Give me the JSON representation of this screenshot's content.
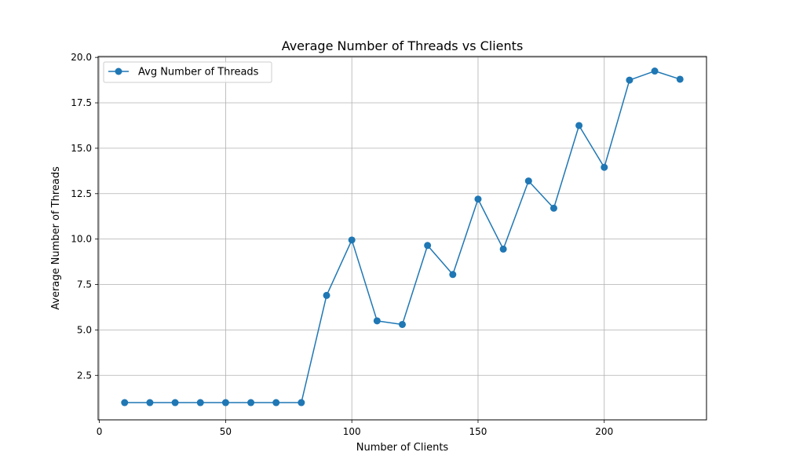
{
  "chart_data": {
    "type": "line",
    "title": "Average Number of Threads vs Clients",
    "xlabel": "Number of Clients",
    "ylabel": "Average Number of Threads",
    "xlim": [
      -0.5,
      240.5
    ],
    "ylim": [
      0.05,
      20.05
    ],
    "xticks": [
      0,
      50,
      100,
      150,
      200
    ],
    "xtick_labels": [
      "0",
      "50",
      "100",
      "150",
      "200"
    ],
    "yticks": [
      2.5,
      5.0,
      7.5,
      10.0,
      12.5,
      15.0,
      17.5,
      20.0
    ],
    "ytick_labels": [
      "2.5",
      "5.0",
      "7.5",
      "10.0",
      "12.5",
      "15.0",
      "17.5",
      "20.0"
    ],
    "grid": true,
    "legend_position": "upper-left",
    "series": [
      {
        "name": "Avg Number of Threads",
        "color": "#1f77b4",
        "marker": "circle",
        "x": [
          10,
          20,
          30,
          40,
          50,
          60,
          70,
          80,
          90,
          100,
          110,
          120,
          130,
          140,
          150,
          160,
          170,
          180,
          190,
          200,
          210,
          220,
          230
        ],
        "y": [
          1.0,
          1.0,
          1.0,
          1.0,
          1.0,
          1.0,
          1.0,
          1.0,
          6.9,
          9.95,
          5.5,
          5.3,
          9.65,
          8.05,
          12.2,
          9.45,
          13.2,
          11.7,
          16.25,
          13.95,
          18.75,
          19.25,
          18.8
        ]
      }
    ]
  }
}
